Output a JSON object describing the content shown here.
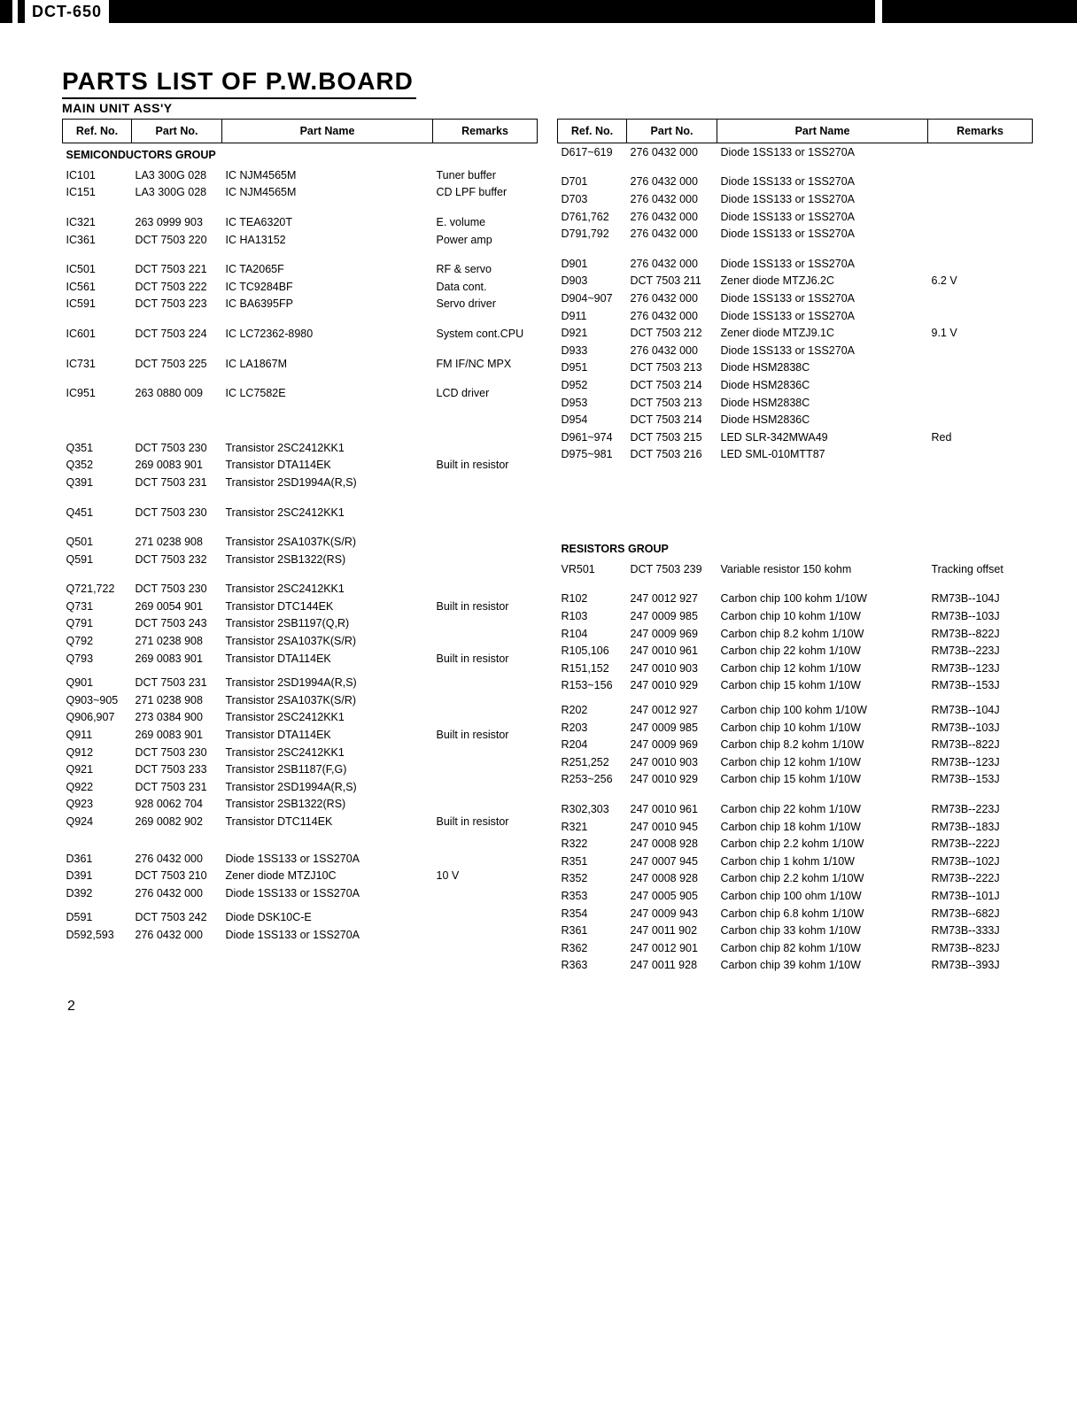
{
  "header_model": "DCT-650",
  "title": "PARTS LIST OF P.W.BOARD",
  "subtitle": "MAIN UNIT ASS'Y",
  "page_number": "2",
  "table_headers": {
    "ref": "Ref. No.",
    "pno": "Part No.",
    "pname": "Part Name",
    "rem": "Remarks"
  },
  "left_rows": [
    {
      "type": "group",
      "label": "SEMICONDUCTORS GROUP"
    },
    {
      "ref": "IC101",
      "pno": "LA3 300G 028",
      "pname": "IC NJM4565M",
      "rem": "Tuner buffer"
    },
    {
      "ref": "IC151",
      "pno": "LA3 300G 028",
      "pname": "IC NJM4565M",
      "rem": "CD LPF buffer"
    },
    {
      "type": "spacer"
    },
    {
      "ref": "IC321",
      "pno": "263 0999 903",
      "pname": "IC TEA6320T",
      "rem": "E. volume"
    },
    {
      "ref": "IC361",
      "pno": "DCT 7503 220",
      "pname": "IC HA13152",
      "rem": "Power amp"
    },
    {
      "type": "spacer"
    },
    {
      "ref": "IC501",
      "pno": "DCT 7503 221",
      "pname": "IC TA2065F",
      "rem": "RF & servo"
    },
    {
      "ref": "IC561",
      "pno": "DCT 7503 222",
      "pname": "IC TC9284BF",
      "rem": "Data cont."
    },
    {
      "ref": "IC591",
      "pno": "DCT 7503 223",
      "pname": "IC BA6395FP",
      "rem": "Servo driver"
    },
    {
      "type": "spacer"
    },
    {
      "ref": "IC601",
      "pno": "DCT 7503 224",
      "pname": "IC LC72362-8980",
      "rem": "System cont.CPU"
    },
    {
      "type": "spacer"
    },
    {
      "ref": "IC731",
      "pno": "DCT 7503 225",
      "pname": "IC LA1867M",
      "rem": "FM IF/NC MPX"
    },
    {
      "type": "spacer"
    },
    {
      "ref": "IC951",
      "pno": "263 0880 009",
      "pname": "IC LC7582E",
      "rem": "LCD driver"
    },
    {
      "type": "spacer"
    },
    {
      "type": "spacer"
    },
    {
      "type": "spacer"
    },
    {
      "ref": "Q351",
      "pno": "DCT 7503 230",
      "pname": "Transistor 2SC2412KK1",
      "rem": ""
    },
    {
      "ref": "Q352",
      "pno": "269 0083 901",
      "pname": "Transistor DTA114EK",
      "rem": "Built in resistor"
    },
    {
      "ref": "Q391",
      "pno": "DCT 7503 231",
      "pname": "Transistor 2SD1994A(R,S)",
      "rem": ""
    },
    {
      "type": "spacer"
    },
    {
      "ref": "Q451",
      "pno": "DCT 7503 230",
      "pname": "Transistor 2SC2412KK1",
      "rem": ""
    },
    {
      "type": "spacer"
    },
    {
      "ref": "Q501",
      "pno": "271 0238 908",
      "pname": "Transistor 2SA1037K(S/R)",
      "rem": ""
    },
    {
      "ref": "Q591",
      "pno": "DCT 7503 232",
      "pname": "Transistor 2SB1322(RS)",
      "rem": ""
    },
    {
      "type": "spacer"
    },
    {
      "ref": "Q721,722",
      "pno": "DCT 7503 230",
      "pname": "Transistor 2SC2412KK1",
      "rem": ""
    },
    {
      "ref": "Q731",
      "pno": "269 0054 901",
      "pname": "Transistor DTC144EK",
      "rem": "Built in resistor"
    },
    {
      "ref": "Q791",
      "pno": "DCT 7503 243",
      "pname": "Transistor 2SB1197(Q,R)",
      "rem": ""
    },
    {
      "ref": "Q792",
      "pno": "271 0238 908",
      "pname": "Transistor 2SA1037K(S/R)",
      "rem": ""
    },
    {
      "ref": "Q793",
      "pno": "269 0083 901",
      "pname": "Transistor DTA114EK",
      "rem": "Built in resistor"
    },
    {
      "type": "spacer-sm"
    },
    {
      "ref": "Q901",
      "pno": "DCT 7503 231",
      "pname": "Transistor 2SD1994A(R,S)",
      "rem": ""
    },
    {
      "ref": "Q903~905",
      "pno": "271 0238 908",
      "pname": "Transistor 2SA1037K(S/R)",
      "rem": ""
    },
    {
      "ref": "Q906,907",
      "pno": "273 0384 900",
      "pname": "Transistor 2SC2412KK1",
      "rem": ""
    },
    {
      "ref": "Q911",
      "pno": "269 0083 901",
      "pname": "Transistor DTA114EK",
      "rem": "Built in resistor"
    },
    {
      "ref": "Q912",
      "pno": "DCT 7503 230",
      "pname": "Transistor 2SC2412KK1",
      "rem": ""
    },
    {
      "ref": "Q921",
      "pno": "DCT 7503 233",
      "pname": "Transistor 2SB1187(F,G)",
      "rem": ""
    },
    {
      "ref": "Q922",
      "pno": "DCT 7503 231",
      "pname": "Transistor 2SD1994A(R,S)",
      "rem": ""
    },
    {
      "ref": "Q923",
      "pno": "928 0062 704",
      "pname": "Transistor 2SB1322(RS)",
      "rem": ""
    },
    {
      "ref": "Q924",
      "pno": "269 0082 902",
      "pname": "Transistor DTC114EK",
      "rem": "Built in resistor"
    },
    {
      "type": "spacer"
    },
    {
      "type": "spacer-sm"
    },
    {
      "ref": "D361",
      "pno": "276 0432 000",
      "pname": "Diode 1SS133 or 1SS270A",
      "rem": ""
    },
    {
      "ref": "D391",
      "pno": "DCT 7503 210",
      "pname": "Zener diode MTZJ10C",
      "rem": "10 V"
    },
    {
      "ref": "D392",
      "pno": "276 0432 000",
      "pname": "Diode 1SS133 or 1SS270A",
      "rem": ""
    },
    {
      "type": "spacer-sm"
    },
    {
      "ref": "D591",
      "pno": "DCT 7503 242",
      "pname": "Diode DSK10C-E",
      "rem": ""
    },
    {
      "ref": "D592,593",
      "pno": "276 0432 000",
      "pname": "Diode 1SS133 or 1SS270A",
      "rem": ""
    }
  ],
  "right_rows": [
    {
      "ref": "D617~619",
      "pno": "276 0432 000",
      "pname": "Diode 1SS133 or 1SS270A",
      "rem": ""
    },
    {
      "type": "spacer"
    },
    {
      "ref": "D701",
      "pno": "276 0432 000",
      "pname": "Diode 1SS133 or 1SS270A",
      "rem": ""
    },
    {
      "ref": "D703",
      "pno": "276 0432 000",
      "pname": "Diode 1SS133 or 1SS270A",
      "rem": ""
    },
    {
      "ref": "D761,762",
      "pno": "276 0432 000",
      "pname": "Diode 1SS133 or 1SS270A",
      "rem": ""
    },
    {
      "ref": "D791,792",
      "pno": "276 0432 000",
      "pname": "Diode 1SS133 or 1SS270A",
      "rem": ""
    },
    {
      "type": "spacer"
    },
    {
      "ref": "D901",
      "pno": "276 0432 000",
      "pname": "Diode 1SS133 or 1SS270A",
      "rem": ""
    },
    {
      "ref": "D903",
      "pno": "DCT 7503 211",
      "pname": "Zener diode MTZJ6.2C",
      "rem": "6.2 V"
    },
    {
      "ref": "D904~907",
      "pno": "276 0432 000",
      "pname": "Diode 1SS133 or 1SS270A",
      "rem": ""
    },
    {
      "ref": "D911",
      "pno": "276 0432 000",
      "pname": "Diode 1SS133 or 1SS270A",
      "rem": ""
    },
    {
      "ref": "D921",
      "pno": "DCT 7503 212",
      "pname": "Zener diode MTZJ9.1C",
      "rem": "9.1 V"
    },
    {
      "ref": "D933",
      "pno": "276 0432 000",
      "pname": "Diode 1SS133 or 1SS270A",
      "rem": ""
    },
    {
      "ref": "D951",
      "pno": "DCT 7503 213",
      "pname": "Diode HSM2838C",
      "rem": ""
    },
    {
      "ref": "D952",
      "pno": "DCT 7503 214",
      "pname": "Diode HSM2836C",
      "rem": ""
    },
    {
      "ref": "D953",
      "pno": "DCT 7503 213",
      "pname": "Diode HSM2838C",
      "rem": ""
    },
    {
      "ref": "D954",
      "pno": "DCT 7503 214",
      "pname": "Diode HSM2836C",
      "rem": ""
    },
    {
      "ref": "D961~974",
      "pno": "DCT 7503 215",
      "pname": "LED  SLR-342MWA49",
      "rem": "Red"
    },
    {
      "ref": "D975~981",
      "pno": "DCT 7503 216",
      "pname": "LED  SML-010MTT87",
      "rem": ""
    },
    {
      "type": "spacer"
    },
    {
      "type": "spacer"
    },
    {
      "type": "spacer"
    },
    {
      "type": "spacer"
    },
    {
      "type": "spacer"
    },
    {
      "type": "spacer"
    },
    {
      "type": "group",
      "label": "RESISTORS GROUP"
    },
    {
      "ref": "VR501",
      "pno": "DCT 7503 239",
      "pname": "Variable resistor 150 kohm",
      "rem": "Tracking offset"
    },
    {
      "type": "spacer"
    },
    {
      "ref": "R102",
      "pno": "247 0012 927",
      "pname": "Carbon chip 100 kohm 1/10W",
      "rem": "RM73B--104J"
    },
    {
      "ref": "R103",
      "pno": "247 0009 985",
      "pname": "Carbon chip 10 kohm 1/10W",
      "rem": "RM73B--103J"
    },
    {
      "ref": "R104",
      "pno": "247 0009 969",
      "pname": "Carbon chip 8.2 kohm 1/10W",
      "rem": "RM73B--822J"
    },
    {
      "ref": "R105,106",
      "pno": "247 0010 961",
      "pname": "Carbon chip 22 kohm 1/10W",
      "rem": "RM73B--223J"
    },
    {
      "ref": "R151,152",
      "pno": "247 0010 903",
      "pname": "Carbon chip 12 kohm 1/10W",
      "rem": "RM73B--123J"
    },
    {
      "ref": "R153~156",
      "pno": "247 0010 929",
      "pname": "Carbon chip 15 kohm 1/10W",
      "rem": "RM73B--153J"
    },
    {
      "type": "spacer-sm"
    },
    {
      "ref": "R202",
      "pno": "247 0012 927",
      "pname": "Carbon chip 100 kohm 1/10W",
      "rem": "RM73B--104J"
    },
    {
      "ref": "R203",
      "pno": "247 0009 985",
      "pname": "Carbon chip 10 kohm 1/10W",
      "rem": "RM73B--103J"
    },
    {
      "ref": "R204",
      "pno": "247 0009 969",
      "pname": "Carbon chip 8.2 kohm 1/10W",
      "rem": "RM73B--822J"
    },
    {
      "ref": "R251,252",
      "pno": "247 0010 903",
      "pname": "Carbon chip 12 kohm 1/10W",
      "rem": "RM73B--123J"
    },
    {
      "ref": "R253~256",
      "pno": "247 0010 929",
      "pname": "Carbon chip 15 kohm 1/10W",
      "rem": "RM73B--153J"
    },
    {
      "type": "spacer"
    },
    {
      "ref": "R302,303",
      "pno": "247 0010 961",
      "pname": "Carbon chip 22 kohm 1/10W",
      "rem": "RM73B--223J"
    },
    {
      "ref": "R321",
      "pno": "247 0010 945",
      "pname": "Carbon chip 18 kohm 1/10W",
      "rem": "RM73B--183J"
    },
    {
      "ref": "R322",
      "pno": "247 0008 928",
      "pname": "Carbon chip 2.2 kohm 1/10W",
      "rem": "RM73B--222J"
    },
    {
      "ref": "R351",
      "pno": "247 0007 945",
      "pname": "Carbon chip 1 kohm 1/10W",
      "rem": "RM73B--102J"
    },
    {
      "ref": "R352",
      "pno": "247 0008 928",
      "pname": "Carbon chip 2.2 kohm 1/10W",
      "rem": "RM73B--222J"
    },
    {
      "ref": "R353",
      "pno": "247 0005 905",
      "pname": "Carbon chip 100 ohm 1/10W",
      "rem": "RM73B--101J"
    },
    {
      "ref": "R354",
      "pno": "247 0009 943",
      "pname": "Carbon chip 6.8 kohm 1/10W",
      "rem": "RM73B--682J"
    },
    {
      "ref": "R361",
      "pno": "247 0011 902",
      "pname": "Carbon chip 33 kohm 1/10W",
      "rem": "RM73B--333J"
    },
    {
      "ref": "R362",
      "pno": "247 0012 901",
      "pname": "Carbon chip 82 kohm 1/10W",
      "rem": "RM73B--823J"
    },
    {
      "ref": "R363",
      "pno": "247 0011 928",
      "pname": "Carbon chip 39 kohm 1/10W",
      "rem": "RM73B--393J"
    }
  ]
}
